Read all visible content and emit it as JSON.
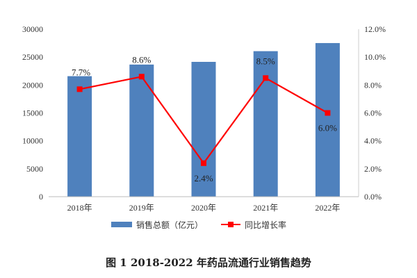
{
  "chart_data": {
    "type": "bar+line",
    "title": "",
    "caption": "图 1    2018-2022 年药品流通行业销售趋势",
    "categories": [
      "2018年",
      "2019年",
      "2020年",
      "2021年",
      "2022年"
    ],
    "series": [
      {
        "name": "销售总额（亿元）",
        "type": "bar",
        "axis": "left",
        "color": "#4f81bd",
        "values": [
          21586,
          23667,
          24149,
          26064,
          27516
        ]
      },
      {
        "name": "同比增长率",
        "type": "line",
        "axis": "right",
        "color": "#ff0000",
        "values": [
          7.7,
          8.6,
          2.4,
          8.5,
          6.0
        ],
        "labels": [
          "7.7%",
          "8.6%",
          "2.4%",
          "8.5%",
          "6.0%"
        ]
      }
    ],
    "left_axis": {
      "range": [
        0,
        30000
      ],
      "ticks": [
        "0",
        "5000",
        "10000",
        "15000",
        "20000",
        "25000",
        "30000"
      ]
    },
    "right_axis": {
      "range": [
        0,
        12
      ],
      "ticks": [
        "0.0%",
        "2.0%",
        "4.0%",
        "6.0%",
        "8.0%",
        "10.0%",
        "12.0%"
      ]
    },
    "legend_position": "bottom",
    "grid": false
  }
}
